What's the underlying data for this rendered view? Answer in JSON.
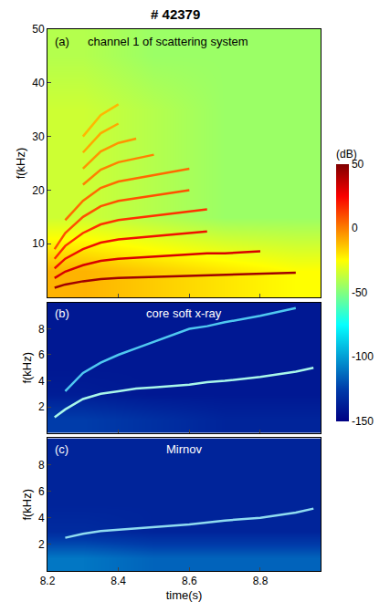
{
  "chart_data": [
    {
      "type": "heatmap",
      "title": "# 42379",
      "label": "(a)",
      "subtitle": "channel 1 of scattering system",
      "ylabel": "f(kHz)",
      "xlim": [
        8.2,
        8.97
      ],
      "xticks": [
        8.2,
        8.4,
        8.6,
        8.8
      ],
      "ylim": [
        0,
        50
      ],
      "yticks": [
        10,
        20,
        30,
        40,
        50
      ],
      "tick_labels": "y",
      "colorbar_range": [
        -150,
        50
      ],
      "colorbar_ticks": [
        50,
        0,
        -50,
        -100,
        -150
      ],
      "colorbar_title": "(dB)",
      "cells": {
        "x": [
          8.3,
          8.5,
          8.7,
          8.9
        ],
        "y": [
          5,
          15,
          25,
          35,
          45
        ],
        "z": [
          [
            -10,
            -15,
            -20,
            -25
          ],
          [
            -35,
            -40,
            -45,
            -45
          ],
          [
            -35,
            -40,
            -45,
            -45
          ],
          [
            -35,
            -40,
            -45,
            -45
          ],
          [
            -40,
            -45,
            -45,
            -45
          ]
        ]
      },
      "x": [
        8.22,
        8.25,
        8.3,
        8.35,
        8.4,
        8.45,
        8.5,
        8.55,
        8.6,
        8.65,
        8.7,
        8.8,
        8.9
      ],
      "series": [
        {
          "color": "#a00000",
          "values": [
            1.8,
            2.4,
            3.0,
            3.4,
            3.6,
            3.7,
            3.8,
            3.9,
            4.0,
            4.1,
            4.1,
            4.3,
            4.6
          ]
        },
        {
          "color": "#d80000",
          "values": [
            3.6,
            4.8,
            6.0,
            6.8,
            7.2,
            7.4,
            7.6,
            7.8,
            8.0,
            8.2,
            8.2,
            8.6,
            null
          ]
        },
        {
          "color": "#f01000",
          "values": [
            5.4,
            7.2,
            9.0,
            10.2,
            10.8,
            11.1,
            11.4,
            11.7,
            12.0,
            12.3,
            null,
            null,
            null
          ]
        },
        {
          "color": "#ff3000",
          "values": [
            7.2,
            9.6,
            12.0,
            13.6,
            14.4,
            14.8,
            15.2,
            15.6,
            16.0,
            16.4,
            null,
            null,
            null
          ]
        },
        {
          "color": "#ff5000",
          "values": [
            9.0,
            12.0,
            15.0,
            17.0,
            18.0,
            18.5,
            19.0,
            19.5,
            20.0,
            null,
            null,
            null,
            null
          ]
        },
        {
          "color": "#ff6a00",
          "values": [
            null,
            14.4,
            18.0,
            20.4,
            21.6,
            22.2,
            22.8,
            23.4,
            24.0,
            null,
            null,
            null,
            null
          ]
        },
        {
          "color": "#ff8000",
          "values": [
            null,
            null,
            21.0,
            23.8,
            25.2,
            25.9,
            26.6,
            null,
            null,
            null,
            null,
            null,
            null
          ]
        },
        {
          "color": "#ff9400",
          "values": [
            null,
            null,
            24.0,
            27.2,
            28.8,
            29.6,
            null,
            null,
            null,
            null,
            null,
            null,
            null
          ]
        },
        {
          "color": "#ffa800",
          "values": [
            null,
            null,
            27.0,
            30.6,
            32.4,
            null,
            null,
            null,
            null,
            null,
            null,
            null,
            null
          ]
        },
        {
          "color": "#ffb800",
          "values": [
            null,
            null,
            30.0,
            34.0,
            36.0,
            null,
            null,
            null,
            null,
            null,
            null,
            null,
            null
          ]
        }
      ]
    },
    {
      "type": "heatmap",
      "label": "(b)",
      "subtitle": "core soft x-ray",
      "ylabel": "f(kHz)",
      "xlim": [
        8.2,
        8.97
      ],
      "xticks": [
        8.2,
        8.4,
        8.6,
        8.8
      ],
      "ylim": [
        0,
        10
      ],
      "yticks": [
        2,
        4,
        6,
        8
      ],
      "tick_labels": "y",
      "cells": {
        "x": [
          8.3,
          8.5,
          8.7,
          8.9
        ],
        "y": [
          1,
          3,
          5,
          7,
          9
        ],
        "z": [
          [
            -125,
            -130,
            -135,
            -135
          ],
          [
            -138,
            -140,
            -140,
            -140
          ],
          [
            -140,
            -140,
            -140,
            -140
          ],
          [
            -140,
            -140,
            -140,
            -140
          ],
          [
            -140,
            -140,
            -140,
            -140
          ]
        ]
      },
      "x": [
        8.22,
        8.25,
        8.3,
        8.35,
        8.4,
        8.45,
        8.5,
        8.55,
        8.6,
        8.65,
        8.7,
        8.8,
        8.9,
        8.95
      ],
      "series": [
        {
          "color": "#a8f7ea",
          "values": [
            1.2,
            1.8,
            2.6,
            3.0,
            3.2,
            3.4,
            3.5,
            3.6,
            3.7,
            3.9,
            4.0,
            4.3,
            4.7,
            5.0
          ]
        },
        {
          "color": "#4fc8f0",
          "values": [
            null,
            3.2,
            4.6,
            5.4,
            6.0,
            6.5,
            7.0,
            7.5,
            8.0,
            8.2,
            8.5,
            9.0,
            9.6,
            null
          ]
        }
      ]
    },
    {
      "type": "heatmap",
      "label": "(c)",
      "subtitle": "Mirnov",
      "ylabel": "f(kHz)",
      "xlabel": "time(s)",
      "xlim": [
        8.2,
        8.97
      ],
      "xticks": [
        8.2,
        8.4,
        8.6,
        8.8
      ],
      "ylim": [
        0,
        10
      ],
      "yticks": [
        2,
        4,
        6,
        8
      ],
      "cells": {
        "x": [
          8.3,
          8.5,
          8.7,
          8.9
        ],
        "y": [
          1,
          3,
          5,
          7,
          9
        ],
        "z": [
          [
            -110,
            -115,
            -115,
            -115
          ],
          [
            -132,
            -135,
            -135,
            -135
          ],
          [
            -135,
            -135,
            -135,
            -135
          ],
          [
            -135,
            -135,
            -135,
            -135
          ],
          [
            -135,
            -135,
            -135,
            -135
          ]
        ]
      },
      "x": [
        8.25,
        8.3,
        8.35,
        8.4,
        8.5,
        8.6,
        8.7,
        8.8,
        8.9,
        8.95
      ],
      "series": [
        {
          "color": "#8fdcf0",
          "values": [
            2.5,
            2.8,
            3.0,
            3.1,
            3.3,
            3.5,
            3.8,
            4.0,
            4.4,
            4.7
          ]
        }
      ]
    }
  ]
}
